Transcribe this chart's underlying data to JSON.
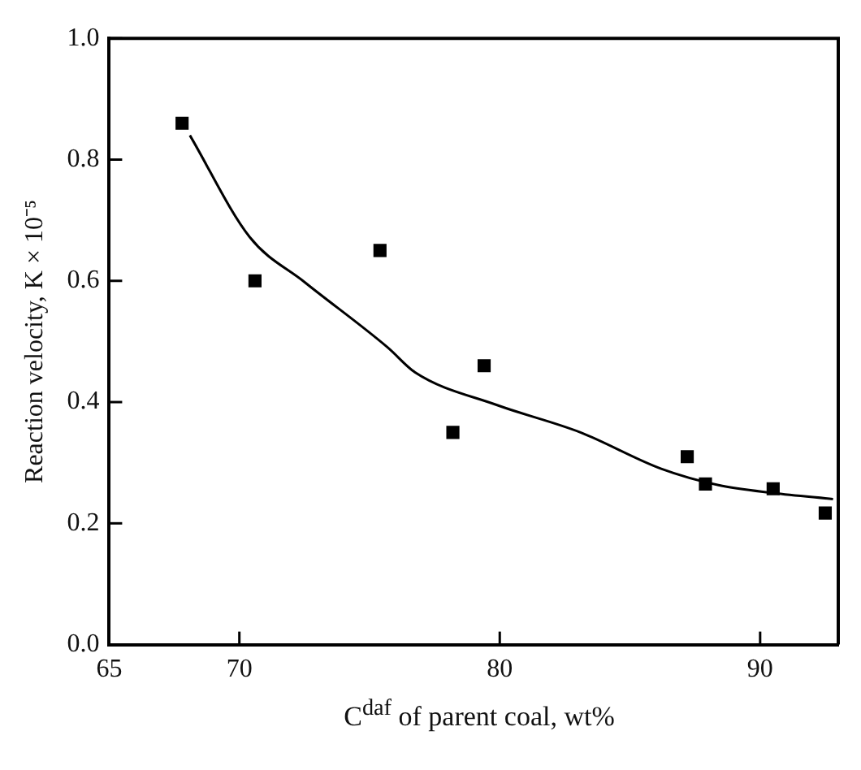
{
  "chart_data": {
    "type": "scatter",
    "xlabel": "C$^{daf}$ of parent coal, wt%",
    "ylabel": "Reaction velocity, K × 10⁻⁵",
    "xlim": [
      65,
      93
    ],
    "xticks": [
      65,
      70,
      80,
      90
    ],
    "ylim": [
      0,
      1
    ],
    "yticks": [
      {
        "value": 0,
        "label": "0.0"
      },
      0.2,
      0.4,
      0.6,
      0.8,
      {
        "value": 1,
        "label": "1.0"
      }
    ],
    "grid": false,
    "legend": false,
    "marker": "square",
    "series": [
      {
        "color": "#000000",
        "x": [
          67.8,
          70.6,
          75.4,
          79.4,
          78.2,
          87.2,
          87.9,
          90.5,
          92.5
        ],
        "values": [
          0.86,
          0.6,
          0.65,
          0.46,
          0.35,
          0.31,
          0.265,
          0.257,
          0.217
        ]
      },
      {
        "type": "line",
        "color": "#000000",
        "line_style": "solid",
        "marker": "none",
        "x": [
          68.1,
          70.4,
          72.5,
          75.7,
          76.75,
          79.9,
          83.1,
          86.2,
          88.4,
          90.5,
          92.8
        ],
        "values": [
          0.84,
          0.672,
          0.598,
          0.49,
          0.449,
          0.395,
          0.35,
          0.29,
          0.263,
          0.25,
          0.24
        ]
      }
    ]
  }
}
